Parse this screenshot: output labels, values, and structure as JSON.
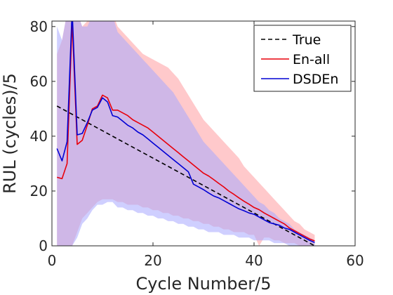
{
  "chart_data": {
    "type": "line",
    "xlabel": "Cycle Number/5",
    "ylabel": "RUL (cycles)/5",
    "xlim": [
      0,
      60
    ],
    "ylim": [
      0,
      82
    ],
    "xticks": [
      0,
      20,
      40,
      60
    ],
    "yticks": [
      0,
      20,
      40,
      60,
      80
    ],
    "grid": false,
    "legend_position": "top-right",
    "series": [
      {
        "name": "True",
        "style": "dashed",
        "color": "#000000",
        "x": [
          1,
          52
        ],
        "y": [
          51,
          0
        ]
      },
      {
        "name": "En-all",
        "style": "solid",
        "color": "#e8000b",
        "band_color": "#ff9da0",
        "x": [
          1,
          2,
          3,
          4,
          5,
          6,
          7,
          8,
          9,
          10,
          11,
          12,
          13,
          14,
          15,
          16,
          17,
          18,
          19,
          20,
          21,
          22,
          23,
          24,
          25,
          26,
          27,
          28,
          29,
          30,
          31,
          32,
          33,
          34,
          35,
          36,
          37,
          38,
          39,
          40,
          41,
          42,
          43,
          44,
          45,
          46,
          47,
          48,
          49,
          50,
          51,
          52
        ],
        "y": [
          25,
          24.5,
          30,
          82,
          37,
          38.5,
          44,
          50,
          51,
          55,
          54,
          49.5,
          49.5,
          48.5,
          47.5,
          46,
          45,
          44,
          43,
          41.5,
          40,
          38.5,
          37,
          35.5,
          34,
          32.5,
          31,
          29.5,
          28,
          26.5,
          25.5,
          24.2,
          22.8,
          21.5,
          20,
          18.8,
          17.5,
          16.3,
          15.2,
          14,
          13.2,
          12,
          11,
          10,
          9,
          8,
          6.5,
          5.5,
          4.5,
          3.5,
          2.5,
          1.8
        ],
        "lower": [
          0,
          0,
          0,
          0,
          5,
          10,
          12,
          14,
          16,
          17,
          17,
          17,
          16,
          16,
          15,
          15,
          15,
          14,
          14,
          13,
          13,
          12,
          12,
          11,
          11,
          10,
          10,
          9,
          9,
          8,
          8,
          7,
          7,
          6,
          6,
          5,
          5,
          5,
          4,
          4,
          0,
          3,
          3,
          2,
          2,
          1,
          1,
          1,
          0,
          0,
          0,
          0
        ],
        "upper": [
          70,
          75,
          85,
          95,
          85,
          80,
          82,
          85,
          88,
          90,
          87,
          85,
          80,
          78,
          76,
          74,
          72,
          70,
          69,
          68,
          67,
          66,
          65,
          63,
          61,
          58,
          55,
          52,
          49,
          46,
          44,
          42,
          40,
          38,
          36,
          34,
          32,
          29,
          27,
          25,
          23,
          21,
          19,
          17,
          15,
          13,
          11,
          9,
          8,
          6,
          5,
          4
        ]
      },
      {
        "name": "DSDEn",
        "style": "solid",
        "color": "#0000d4",
        "band_color": "#a8a8ff",
        "x": [
          1,
          2,
          3,
          4,
          5,
          6,
          7,
          8,
          9,
          10,
          11,
          12,
          13,
          14,
          15,
          16,
          17,
          18,
          19,
          20,
          21,
          22,
          23,
          24,
          25,
          26,
          27,
          28,
          29,
          30,
          31,
          32,
          33,
          34,
          35,
          36,
          37,
          38,
          39,
          40,
          41,
          42,
          43,
          44,
          45,
          46,
          47,
          48,
          49,
          50,
          51,
          52
        ],
        "y": [
          35.5,
          31,
          38,
          86,
          40.5,
          41,
          45,
          49.5,
          50.5,
          54,
          52.5,
          47.5,
          47,
          45.5,
          44,
          43,
          41.5,
          40.5,
          39,
          37.5,
          36,
          34.5,
          33,
          31.5,
          30,
          28.5,
          27,
          22.5,
          21.5,
          20.5,
          19.3,
          18.2,
          17.5,
          16.5,
          15.5,
          14.5,
          13.5,
          12.8,
          12,
          11.5,
          10.5,
          9.5,
          8.5,
          8,
          7.5,
          6.5,
          6,
          5,
          4,
          3,
          2,
          1.2
        ],
        "lower": [
          0,
          0,
          0,
          0,
          3,
          8,
          10,
          13,
          15,
          15,
          16,
          16,
          14,
          14,
          13,
          13,
          12,
          12,
          11,
          11,
          10,
          10,
          9,
          9,
          8,
          8,
          7,
          7,
          6,
          6,
          5,
          5,
          5,
          4,
          4,
          4,
          3,
          3,
          3,
          2,
          2,
          2,
          2,
          1,
          1,
          1,
          0,
          0,
          0,
          0,
          0,
          0
        ],
        "upper": [
          80,
          75,
          85,
          95,
          85,
          80,
          80,
          84,
          88,
          90,
          86,
          84,
          78,
          76,
          74,
          72,
          70,
          68,
          66,
          64,
          62,
          60,
          58,
          56,
          53,
          50,
          47,
          44,
          41,
          38,
          36,
          34,
          32,
          30,
          28,
          26,
          24,
          22,
          20,
          18,
          16,
          15,
          13,
          12,
          10,
          9,
          8,
          6,
          5,
          4,
          3,
          2
        ]
      }
    ]
  }
}
